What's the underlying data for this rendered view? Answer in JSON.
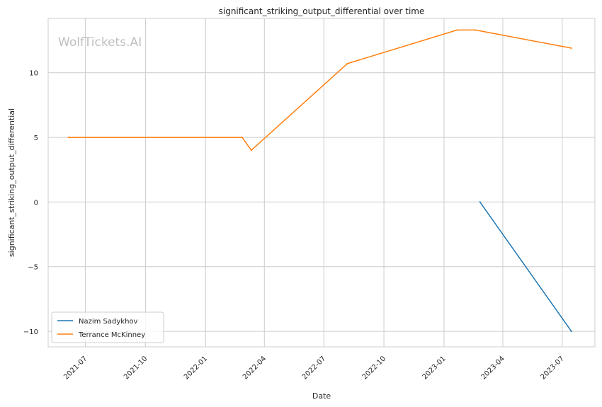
{
  "chart_data": {
    "type": "line",
    "title": "significant_striking_output_differential over time",
    "xlabel": "Date",
    "ylabel": "significant_striking_output_differential",
    "watermark": "WolfTickets.AI",
    "x_ticks": [
      "2021-07",
      "2021-10",
      "2022-01",
      "2022-04",
      "2022-07",
      "2022-10",
      "2023-01",
      "2023-04",
      "2023-07"
    ],
    "y_ticks": [
      -10,
      -5,
      0,
      5,
      10
    ],
    "xlim": [
      "2021-05-05",
      "2023-08-20"
    ],
    "ylim": [
      -11.2,
      14.2
    ],
    "grid": true,
    "legend_position": "lower-left",
    "series": [
      {
        "name": "Nazim Sadykhov",
        "color": "#1f77b4",
        "points": [
          {
            "x": "2023-02-25",
            "y": 0
          },
          {
            "x": "2023-07-15",
            "y": -10
          }
        ]
      },
      {
        "name": "Terrance McKinney",
        "color": "#ff7f0e",
        "points": [
          {
            "x": "2021-06-05",
            "y": 5
          },
          {
            "x": "2022-02-26",
            "y": 5
          },
          {
            "x": "2022-03-12",
            "y": 4
          },
          {
            "x": "2022-08-06",
            "y": 10.7
          },
          {
            "x": "2023-01-21",
            "y": 13.3
          },
          {
            "x": "2023-02-18",
            "y": 13.3
          },
          {
            "x": "2023-07-15",
            "y": 11.9
          }
        ]
      }
    ]
  }
}
